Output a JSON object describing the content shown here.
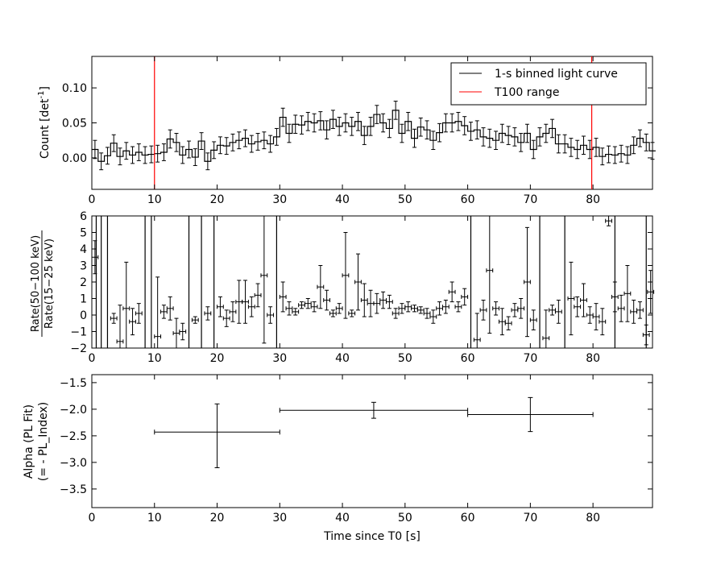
{
  "panels": {
    "top": {
      "ylabel": "Count [det",
      "ylabel_sup": "-1",
      "ylabel_end": "]",
      "ylim": [
        -0.045,
        0.145
      ],
      "yticks": [
        "0.00",
        "0.05",
        "0.10"
      ],
      "ytick_values": [
        0.0,
        0.05,
        0.1
      ],
      "legend": {
        "line1": "1-s binned light curve",
        "line2": "T100 range"
      }
    },
    "middle": {
      "ylabel_num": "Rate(50−100 keV)",
      "ylabel_den": "Rate(15−25 keV)",
      "ylim": [
        -2,
        6
      ],
      "yticks": [
        "−2",
        "−1",
        "0",
        "1",
        "2",
        "3",
        "4",
        "5",
        "6"
      ],
      "ytick_values": [
        -2,
        -1,
        0,
        1,
        2,
        3,
        4,
        5,
        6
      ]
    },
    "bottom": {
      "ylabel_line1": "Alpha (PL Fit)",
      "ylabel_line2": "(= - PL_Index)",
      "ylim": [
        -3.85,
        -1.35
      ],
      "yticks": [
        "−1.5",
        "−2.0",
        "−2.5",
        "−3.0",
        "−3.5"
      ],
      "ytick_values": [
        -1.5,
        -2.0,
        -2.5,
        -3.0,
        -3.5
      ]
    }
  },
  "xaxis": {
    "xlabel": "Time since T0 [s]",
    "xlim": [
      0,
      89.5
    ],
    "xticks": [
      "0",
      "10",
      "20",
      "30",
      "40",
      "50",
      "60",
      "70",
      "80"
    ],
    "xtick_values": [
      0,
      10,
      20,
      30,
      40,
      50,
      60,
      70,
      80
    ]
  },
  "colors": {
    "curve": "#000000",
    "t100": "#ff0000"
  },
  "chart_data": [
    {
      "type": "line",
      "title": "",
      "ylabel": "Count [det^-1]",
      "xlabel": "",
      "step": true,
      "series": [
        {
          "name": "1-s binned light curve",
          "x_start": 0,
          "x_step": 1,
          "values": [
            0.012,
            -0.005,
            0.003,
            0.021,
            0.002,
            0.01,
            0.004,
            0.008,
            0.004,
            0.005,
            0.006,
            0.008,
            0.027,
            0.022,
            0.004,
            0.012,
            0.001,
            0.024,
            -0.005,
            0.011,
            0.018,
            0.017,
            0.022,
            0.025,
            0.028,
            0.02,
            0.023,
            0.025,
            0.02,
            0.03,
            0.058,
            0.035,
            0.048,
            0.047,
            0.052,
            0.05,
            0.053,
            0.04,
            0.055,
            0.045,
            0.05,
            0.045,
            0.052,
            0.032,
            0.045,
            0.062,
            0.05,
            0.042,
            0.068,
            0.035,
            0.052,
            0.028,
            0.044,
            0.04,
            0.025,
            0.036,
            0.05,
            0.05,
            0.052,
            0.046,
            0.038,
            0.04,
            0.03,
            0.028,
            0.025,
            0.035,
            0.032,
            0.03,
            0.022,
            0.035,
            0.012,
            0.03,
            0.035,
            0.042,
            0.02,
            0.02,
            0.015,
            0.012,
            0.018,
            0.012,
            0.015,
            0.002,
            0.005,
            0.004,
            0.006,
            0.004,
            0.018,
            0.028,
            0.022,
            0.01
          ],
          "errors": [
            0.013,
            0.012,
            0.012,
            0.012,
            0.012,
            0.012,
            0.012,
            0.012,
            0.012,
            0.012,
            0.012,
            0.012,
            0.013,
            0.013,
            0.012,
            0.012,
            0.012,
            0.012,
            0.012,
            0.012,
            0.012,
            0.012,
            0.012,
            0.012,
            0.012,
            0.012,
            0.012,
            0.012,
            0.012,
            0.012,
            0.013,
            0.013,
            0.013,
            0.013,
            0.013,
            0.013,
            0.013,
            0.013,
            0.013,
            0.013,
            0.013,
            0.013,
            0.013,
            0.013,
            0.013,
            0.013,
            0.013,
            0.013,
            0.013,
            0.013,
            0.013,
            0.013,
            0.013,
            0.013,
            0.013,
            0.013,
            0.013,
            0.013,
            0.013,
            0.013,
            0.013,
            0.013,
            0.013,
            0.013,
            0.013,
            0.013,
            0.013,
            0.013,
            0.013,
            0.013,
            0.013,
            0.013,
            0.013,
            0.013,
            0.013,
            0.013,
            0.013,
            0.013,
            0.013,
            0.013,
            0.013,
            0.012,
            0.012,
            0.012,
            0.012,
            0.012,
            0.012,
            0.012,
            0.012,
            0.012
          ]
        }
      ],
      "t100_range": [
        10,
        79.8
      ],
      "ylim": [
        -0.045,
        0.145
      ],
      "xlim": [
        0,
        89.5
      ],
      "legend_position": "top-right"
    },
    {
      "type": "scatter",
      "title": "",
      "ylabel": "Rate(50−100 keV) / Rate(15−25 keV)",
      "xlabel": "",
      "points": [
        {
          "x": 0.5,
          "y": 3.5,
          "err": 1.0
        },
        {
          "x": 3.5,
          "y": -0.2,
          "err": 0.3
        },
        {
          "x": 4.5,
          "y": -1.6,
          "err": 2.2
        },
        {
          "x": 5.5,
          "y": 0.4,
          "err": 2.8
        },
        {
          "x": 6.5,
          "y": -0.4,
          "err": 0.8
        },
        {
          "x": 7.5,
          "y": 0.1,
          "err": 0.6
        },
        {
          "x": 10.5,
          "y": -1.3,
          "err": 3.6
        },
        {
          "x": 11.5,
          "y": 0.2,
          "err": 0.4
        },
        {
          "x": 12.5,
          "y": 0.4,
          "err": 0.7
        },
        {
          "x": 13.5,
          "y": -1.1,
          "err": 0.9
        },
        {
          "x": 14.5,
          "y": -1.0,
          "err": 0.5
        },
        {
          "x": 16.5,
          "y": -0.3,
          "err": 0.2
        },
        {
          "x": 18.5,
          "y": 0.1,
          "err": 0.4
        },
        {
          "x": 20.5,
          "y": 0.5,
          "err": 0.6
        },
        {
          "x": 21.5,
          "y": -0.2,
          "err": 0.5
        },
        {
          "x": 22.5,
          "y": 0.2,
          "err": 0.6
        },
        {
          "x": 23.5,
          "y": 0.8,
          "err": 1.3
        },
        {
          "x": 24.5,
          "y": 0.8,
          "err": 1.3
        },
        {
          "x": 25.5,
          "y": 0.5,
          "err": 0.6
        },
        {
          "x": 26.5,
          "y": 1.2,
          "err": 0.7
        },
        {
          "x": 27.5,
          "y": 2.4,
          "err": 4.1
        },
        {
          "x": 28.5,
          "y": 0.0,
          "err": 0.5
        },
        {
          "x": 30.5,
          "y": 1.1,
          "err": 0.9
        },
        {
          "x": 31.5,
          "y": 0.4,
          "err": 0.4
        },
        {
          "x": 32.5,
          "y": 0.2,
          "err": 0.2
        },
        {
          "x": 33.5,
          "y": 0.6,
          "err": 0.2
        },
        {
          "x": 34.5,
          "y": 0.7,
          "err": 0.3
        },
        {
          "x": 35.5,
          "y": 0.5,
          "err": 0.3
        },
        {
          "x": 36.5,
          "y": 1.7,
          "err": 1.3
        },
        {
          "x": 37.5,
          "y": 0.9,
          "err": 0.6
        },
        {
          "x": 38.5,
          "y": 0.1,
          "err": 0.2
        },
        {
          "x": 39.5,
          "y": 0.4,
          "err": 0.3
        },
        {
          "x": 40.5,
          "y": 2.4,
          "err": 2.6
        },
        {
          "x": 41.5,
          "y": 0.1,
          "err": 0.2
        },
        {
          "x": 42.5,
          "y": 2.0,
          "err": 1.7
        },
        {
          "x": 43.5,
          "y": 0.9,
          "err": 1.0
        },
        {
          "x": 44.5,
          "y": 0.7,
          "err": 0.8
        },
        {
          "x": 45.5,
          "y": 0.7,
          "err": 0.6
        },
        {
          "x": 46.5,
          "y": 0.9,
          "err": 0.5
        },
        {
          "x": 47.5,
          "y": 0.8,
          "err": 0.4
        },
        {
          "x": 48.5,
          "y": 0.1,
          "err": 0.3
        },
        {
          "x": 49.5,
          "y": 0.4,
          "err": 0.3
        },
        {
          "x": 50.5,
          "y": 0.5,
          "err": 0.3
        },
        {
          "x": 51.5,
          "y": 0.4,
          "err": 0.2
        },
        {
          "x": 52.5,
          "y": 0.3,
          "err": 0.2
        },
        {
          "x": 53.5,
          "y": 0.1,
          "err": 0.3
        },
        {
          "x": 54.5,
          "y": -0.1,
          "err": 0.4
        },
        {
          "x": 55.5,
          "y": 0.4,
          "err": 0.4
        },
        {
          "x": 56.5,
          "y": 0.5,
          "err": 0.4
        },
        {
          "x": 57.5,
          "y": 1.4,
          "err": 0.6
        },
        {
          "x": 58.5,
          "y": 0.5,
          "err": 0.3
        },
        {
          "x": 59.5,
          "y": 1.1,
          "err": 0.5
        },
        {
          "x": 61.5,
          "y": -1.5,
          "err": 1.6
        },
        {
          "x": 62.5,
          "y": 0.3,
          "err": 0.6
        },
        {
          "x": 63.5,
          "y": 2.7,
          "err": 3.8
        },
        {
          "x": 64.5,
          "y": 0.4,
          "err": 0.4
        },
        {
          "x": 65.5,
          "y": -0.4,
          "err": 0.8
        },
        {
          "x": 66.5,
          "y": -0.5,
          "err": 0.4
        },
        {
          "x": 67.5,
          "y": 0.3,
          "err": 0.4
        },
        {
          "x": 68.5,
          "y": 0.4,
          "err": 0.6
        },
        {
          "x": 69.5,
          "y": 2.0,
          "err": 3.3
        },
        {
          "x": 70.5,
          "y": -0.3,
          "err": 0.6
        },
        {
          "x": 72.5,
          "y": -1.4,
          "err": 1.7
        },
        {
          "x": 73.5,
          "y": 0.3,
          "err": 0.3
        },
        {
          "x": 74.5,
          "y": 0.2,
          "err": 0.7
        },
        {
          "x": 76.5,
          "y": 1.0,
          "err": 2.2
        },
        {
          "x": 77.5,
          "y": 0.5,
          "err": 0.6
        },
        {
          "x": 78.5,
          "y": 0.9,
          "err": 1.0
        },
        {
          "x": 79.5,
          "y": 0.0,
          "err": 0.5
        },
        {
          "x": 80.5,
          "y": -0.1,
          "err": 0.8
        },
        {
          "x": 81.5,
          "y": -0.4,
          "err": 0.8
        },
        {
          "x": 82.5,
          "y": 5.7,
          "err": 0.3
        },
        {
          "x": 83.5,
          "y": 1.1,
          "err": 0.9
        },
        {
          "x": 84.5,
          "y": 0.4,
          "err": 0.8
        },
        {
          "x": 85.5,
          "y": 1.3,
          "err": 1.7
        },
        {
          "x": 86.5,
          "y": 0.2,
          "err": 0.7
        },
        {
          "x": 87.5,
          "y": 0.3,
          "err": 0.5
        },
        {
          "x": 88.5,
          "y": -1.2,
          "err": 0.6
        },
        {
          "x": 89.2,
          "y": 1.4,
          "err": 1.3
        }
      ],
      "unbounded_x": [
        0.7,
        1.5,
        2.5,
        8.5,
        9.5,
        15.5,
        17.5,
        19.5,
        29.5,
        60.5,
        71.5,
        75.5,
        83.5,
        88.5
      ],
      "ylim": [
        -2,
        6
      ],
      "xlim": [
        0,
        89.5
      ]
    },
    {
      "type": "scatter",
      "title": "",
      "ylabel": "Alpha (PL Fit) (= - PL_Index)",
      "xlabel": "Time since T0 [s]",
      "points": [
        {
          "x": 20,
          "x_lo": 10,
          "x_hi": 30,
          "y": -2.43,
          "y_lo": -3.1,
          "y_hi": -1.9
        },
        {
          "x": 45,
          "x_lo": 30,
          "x_hi": 60,
          "y": -2.02,
          "y_lo": -2.17,
          "y_hi": -1.87
        },
        {
          "x": 70,
          "x_lo": 60,
          "x_hi": 80,
          "y": -2.1,
          "y_lo": -2.42,
          "y_hi": -1.78
        }
      ],
      "ylim": [
        -3.85,
        -1.35
      ],
      "xlim": [
        0,
        89.5
      ]
    }
  ]
}
